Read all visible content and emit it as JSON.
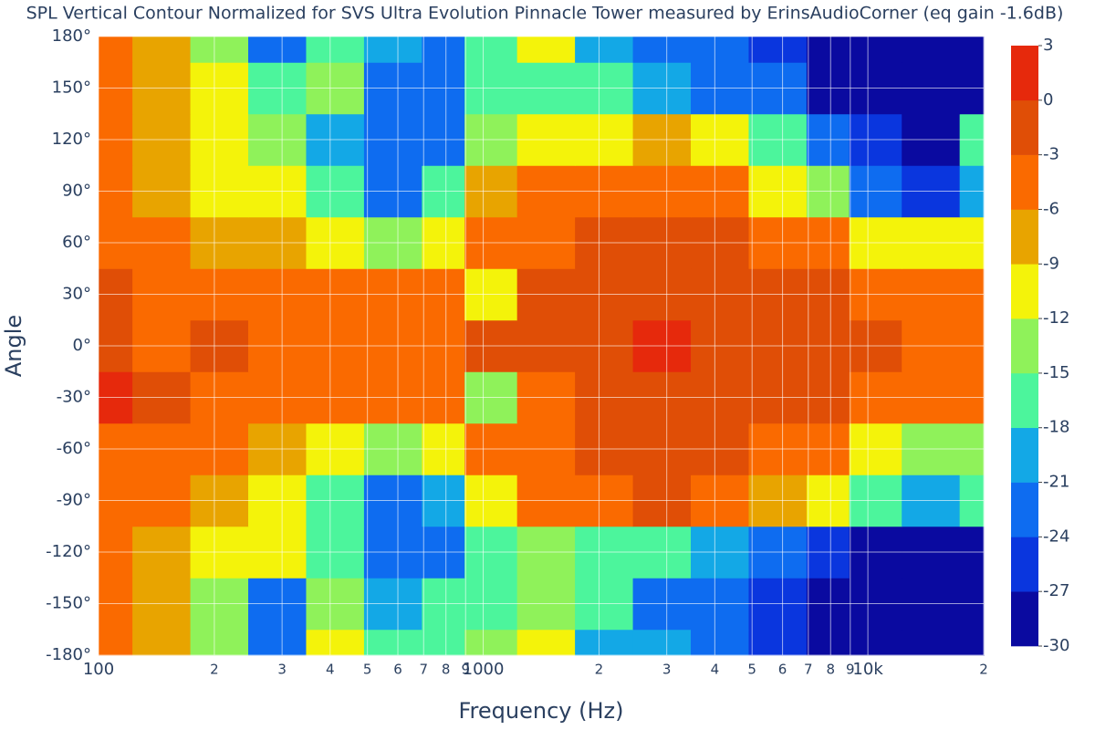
{
  "chart_data": {
    "type": "contour",
    "title": "SPL Vertical Contour Normalized for SVS Ultra Evolution Pinnacle Tower measured by ErinsAudioCorner (eq gain -1.6dB)",
    "x_label": "Frequency (Hz)",
    "y_label": "Angle",
    "x_scale": "log",
    "grid": true,
    "xlim": [
      100,
      20000
    ],
    "xticks": [
      100,
      {
        "value": 200,
        "label": "2"
      },
      {
        "value": 300,
        "label": "3"
      },
      {
        "value": 400,
        "label": "4"
      },
      {
        "value": 500,
        "label": "5"
      },
      {
        "value": 600,
        "label": "6"
      },
      {
        "value": 700,
        "label": "7"
      },
      {
        "value": 800,
        "label": "8"
      },
      {
        "value": 900,
        "label": "9"
      },
      1000,
      {
        "value": 2000,
        "label": "2"
      },
      {
        "value": 3000,
        "label": "3"
      },
      {
        "value": 4000,
        "label": "4"
      },
      {
        "value": 5000,
        "label": "5"
      },
      {
        "value": 6000,
        "label": "6"
      },
      {
        "value": 7000,
        "label": "7"
      },
      {
        "value": 8000,
        "label": "8"
      },
      {
        "value": 9000,
        "label": "9"
      },
      {
        "value": 10000,
        "label": "10k"
      },
      {
        "value": 20000,
        "label": "2"
      }
    ],
    "ylim": [
      -180,
      180
    ],
    "yticks": [
      {
        "value": -180,
        "label": "-180°"
      },
      {
        "value": -150,
        "label": "-150°"
      },
      {
        "value": -120,
        "label": "-120°"
      },
      {
        "value": -90,
        "label": "-90°"
      },
      {
        "value": -60,
        "label": "-60°"
      },
      {
        "value": -30,
        "label": "-30°"
      },
      {
        "value": 0,
        "label": "0°"
      },
      {
        "value": 30,
        "label": "30°"
      },
      {
        "value": 60,
        "label": "60°"
      },
      {
        "value": 90,
        "label": "90°"
      },
      {
        "value": 120,
        "label": "120°"
      },
      {
        "value": 150,
        "label": "150°"
      },
      {
        "value": 180,
        "label": "180°"
      }
    ],
    "zlim": [
      -30,
      3
    ],
    "zticks": [
      -30,
      -27,
      -24,
      -21,
      -18,
      -15,
      -12,
      -9,
      -6,
      -3,
      0,
      3
    ],
    "colors": [
      "#0a0aa0",
      "#0a36de",
      "#0e6cf0",
      "#13a8e6",
      "#4cf59c",
      "#8ff25a",
      "#f4f30a",
      "#e8a400",
      "#fa6a00",
      "#e04e06",
      "#e6290c"
    ],
    "x": [
      100,
      150,
      200,
      300,
      400,
      600,
      800,
      1000,
      1500,
      2000,
      3000,
      4000,
      6000,
      8000,
      10000,
      15000,
      20000
    ],
    "y": [
      -180,
      -150,
      -120,
      -90,
      -60,
      -30,
      0,
      30,
      60,
      90,
      120,
      150,
      180
    ],
    "z": [
      [
        -5,
        -8,
        -13,
        -24,
        -12,
        -18,
        -16,
        -14,
        -12,
        -20,
        -20,
        -24,
        -26,
        -28,
        -29,
        -29,
        -29
      ],
      [
        -5,
        -8,
        -13,
        -22,
        -14,
        -20,
        -18,
        -16,
        -14,
        -18,
        -22,
        -24,
        -26,
        -28,
        -29,
        -29,
        -29
      ],
      [
        -5,
        -7,
        -10,
        -12,
        -18,
        -24,
        -22,
        -16,
        -14,
        -16,
        -18,
        -20,
        -24,
        -27,
        -28,
        -28,
        -28
      ],
      [
        -6,
        -6,
        -9,
        -12,
        -18,
        -22,
        -20,
        -10,
        -6,
        -6,
        -3,
        -5,
        -8,
        -12,
        -18,
        -20,
        -18
      ],
      [
        -4,
        -5,
        -6,
        -8,
        -10,
        -13,
        -12,
        -5,
        -5,
        -3,
        -2,
        -3,
        -4,
        -6,
        -10,
        -14,
        -14
      ],
      [
        0,
        -3,
        -4,
        -5,
        -5,
        -6,
        -6,
        -14,
        -5,
        -2,
        -1,
        -2,
        -1,
        -3,
        -4,
        -5,
        -6
      ],
      [
        -2,
        -4,
        -3,
        -4,
        -4,
        -4,
        -4,
        -3,
        -2,
        -3,
        0,
        -2,
        -1,
        -3,
        -3,
        -4,
        -4
      ],
      [
        -3,
        -4,
        -5,
        -6,
        -6,
        -6,
        -5,
        -10,
        -2,
        -3,
        -2,
        -3,
        -2,
        -3,
        -4,
        -4,
        -5
      ],
      [
        -4,
        -5,
        -7,
        -9,
        -11,
        -13,
        -10,
        -6,
        -4,
        -2,
        -3,
        -3,
        -4,
        -6,
        -10,
        -12,
        -12
      ],
      [
        -5,
        -7,
        -10,
        -12,
        -16,
        -22,
        -18,
        -8,
        -6,
        -5,
        -4,
        -6,
        -10,
        -14,
        -22,
        -25,
        -20
      ],
      [
        -5,
        -7,
        -11,
        -14,
        -20,
        -22,
        -24,
        -14,
        -12,
        -10,
        -8,
        -12,
        -16,
        -24,
        -27,
        -28,
        -18
      ],
      [
        -5,
        -8,
        -12,
        -18,
        -15,
        -22,
        -24,
        -18,
        -16,
        -18,
        -20,
        -22,
        -24,
        -28,
        -29,
        -29,
        -29
      ],
      [
        -5,
        -8,
        -14,
        -24,
        -16,
        -20,
        -22,
        -16,
        -12,
        -20,
        -24,
        -24,
        -26,
        -29,
        -29,
        -29,
        -29
      ]
    ]
  }
}
